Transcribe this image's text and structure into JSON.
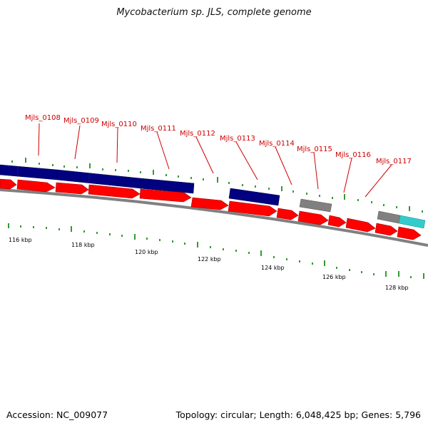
{
  "title": "Mycobacterium sp. JLS, complete genome",
  "footer": {
    "accession": "Accession: NC_009077",
    "summary": "Topology: circular; Length: 6,048,425 bp; Genes: 5,796"
  },
  "colors": {
    "forward_gene": "#ff0000",
    "blue_feature": "#000080",
    "gray_feature": "#808080",
    "cyan_feature": "#33cccc",
    "tick": "#008000",
    "label": "#cc0000"
  },
  "gene_labels": [
    "Mjls_0108",
    "Mjls_0109",
    "Mjls_0110",
    "Mjls_0111",
    "Mjls_0112",
    "Mjls_0113",
    "Mjls_0114",
    "Mjls_0115",
    "Mjls_0116",
    "Mjls_0117"
  ],
  "scale_labels": [
    "116 kbp",
    "118 kbp",
    "120 kbp",
    "122 kbp",
    "124 kbp",
    "126 kbp",
    "128 kbp"
  ]
}
